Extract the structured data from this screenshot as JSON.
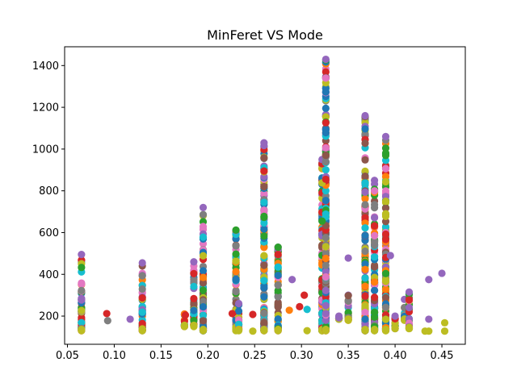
{
  "chart_data": {
    "type": "scatter",
    "title": "MinFeret VS Mode",
    "xlabel": "",
    "ylabel": "",
    "xlim": [
      0.047,
      0.475
    ],
    "ylim": [
      65,
      1490
    ],
    "xticks": [
      0.05,
      0.1,
      0.15,
      0.2,
      0.25,
      0.3,
      0.35,
      0.4,
      0.45
    ],
    "xtick_labels": [
      "0.05",
      "0.10",
      "0.15",
      "0.20",
      "0.25",
      "0.30",
      "0.35",
      "0.40",
      "0.45"
    ],
    "yticks": [
      200,
      400,
      600,
      800,
      1000,
      1200,
      1400
    ],
    "ytick_labels": [
      "200",
      "400",
      "600",
      "800",
      "1000",
      "1200",
      "1400"
    ],
    "grid": false,
    "legend": "none",
    "colors": [
      "#1f77b4",
      "#ff7f0e",
      "#2ca02c",
      "#d62728",
      "#9467bd",
      "#8c564b",
      "#e377c2",
      "#7f7f7f",
      "#bcbd22",
      "#17becf"
    ],
    "clusters": [
      {
        "x": 0.065,
        "ymin": 130,
        "ymax": 495
      },
      {
        "x": 0.13,
        "ymin": 130,
        "ymax": 455
      },
      {
        "x": 0.175,
        "ymin": 150,
        "ymax": 210
      },
      {
        "x": 0.185,
        "ymin": 150,
        "ymax": 460
      },
      {
        "x": 0.195,
        "ymin": 130,
        "ymax": 720
      },
      {
        "x": 0.23,
        "ymin": 130,
        "ymax": 610
      },
      {
        "x": 0.233,
        "ymin": 130,
        "ymax": 260
      },
      {
        "x": 0.26,
        "ymin": 130,
        "ymax": 1030
      },
      {
        "x": 0.275,
        "ymin": 130,
        "ymax": 530
      },
      {
        "x": 0.322,
        "ymin": 130,
        "ymax": 950
      },
      {
        "x": 0.326,
        "ymin": 130,
        "ymax": 1430
      },
      {
        "x": 0.34,
        "ymin": 185,
        "ymax": 200
      },
      {
        "x": 0.35,
        "ymin": 180,
        "ymax": 300
      },
      {
        "x": 0.368,
        "ymin": 130,
        "ymax": 1160
      },
      {
        "x": 0.378,
        "ymin": 130,
        "ymax": 850
      },
      {
        "x": 0.39,
        "ymin": 130,
        "ymax": 1060
      },
      {
        "x": 0.4,
        "ymin": 140,
        "ymax": 200
      },
      {
        "x": 0.41,
        "ymin": 180,
        "ymax": 280
      },
      {
        "x": 0.415,
        "ymin": 140,
        "ymax": 315
      }
    ],
    "points": [
      {
        "x": 0.092,
        "y": 212,
        "color": "#d62728"
      },
      {
        "x": 0.093,
        "y": 178,
        "color": "#7f7f7f"
      },
      {
        "x": 0.117,
        "y": 185,
        "color": "#9467bd"
      },
      {
        "x": 0.175,
        "y": 210,
        "color": "#ff7f0e"
      },
      {
        "x": 0.176,
        "y": 205,
        "color": "#d62728"
      },
      {
        "x": 0.195,
        "y": 578,
        "color": "#17becf"
      },
      {
        "x": 0.226,
        "y": 212,
        "color": "#d62728"
      },
      {
        "x": 0.23,
        "y": 612,
        "color": "#2ca02c"
      },
      {
        "x": 0.23,
        "y": 497,
        "color": "#2ca02c"
      },
      {
        "x": 0.248,
        "y": 208,
        "color": "#d62728"
      },
      {
        "x": 0.248,
        "y": 128,
        "color": "#bcbd22"
      },
      {
        "x": 0.26,
        "y": 895,
        "color": "#d62728"
      },
      {
        "x": 0.26,
        "y": 820,
        "color": "#8c564b"
      },
      {
        "x": 0.26,
        "y": 745,
        "color": "#17becf"
      },
      {
        "x": 0.275,
        "y": 530,
        "color": "#2ca02c"
      },
      {
        "x": 0.275,
        "y": 435,
        "color": "#17becf"
      },
      {
        "x": 0.275,
        "y": 395,
        "color": "#1f77b4"
      },
      {
        "x": 0.287,
        "y": 228,
        "color": "#ff7f0e"
      },
      {
        "x": 0.29,
        "y": 375,
        "color": "#9467bd"
      },
      {
        "x": 0.298,
        "y": 245,
        "color": "#d62728"
      },
      {
        "x": 0.303,
        "y": 300,
        "color": "#d62728"
      },
      {
        "x": 0.306,
        "y": 232,
        "color": "#17becf"
      },
      {
        "x": 0.306,
        "y": 130,
        "color": "#bcbd22"
      },
      {
        "x": 0.322,
        "y": 838,
        "color": "#bcbd22"
      },
      {
        "x": 0.322,
        "y": 655,
        "color": "#2ca02c"
      },
      {
        "x": 0.326,
        "y": 970,
        "color": "#8c564b"
      },
      {
        "x": 0.326,
        "y": 855,
        "color": "#d62728"
      },
      {
        "x": 0.34,
        "y": 192,
        "color": "#9467bd"
      },
      {
        "x": 0.35,
        "y": 478,
        "color": "#9467bd"
      },
      {
        "x": 0.35,
        "y": 298,
        "color": "#8c564b"
      },
      {
        "x": 0.378,
        "y": 585,
        "color": "#e377c2"
      },
      {
        "x": 0.378,
        "y": 290,
        "color": "#d62728"
      },
      {
        "x": 0.39,
        "y": 750,
        "color": "#bcbd22"
      },
      {
        "x": 0.39,
        "y": 690,
        "color": "#bcbd22"
      },
      {
        "x": 0.39,
        "y": 592,
        "color": "#d62728"
      },
      {
        "x": 0.395,
        "y": 490,
        "color": "#9467bd"
      },
      {
        "x": 0.415,
        "y": 140,
        "color": "#bcbd22"
      },
      {
        "x": 0.432,
        "y": 128,
        "color": "#bcbd22"
      },
      {
        "x": 0.436,
        "y": 375,
        "color": "#9467bd"
      },
      {
        "x": 0.436,
        "y": 185,
        "color": "#9467bd"
      },
      {
        "x": 0.436,
        "y": 128,
        "color": "#bcbd22"
      },
      {
        "x": 0.45,
        "y": 405,
        "color": "#9467bd"
      },
      {
        "x": 0.453,
        "y": 168,
        "color": "#bcbd22"
      },
      {
        "x": 0.453,
        "y": 128,
        "color": "#bcbd22"
      }
    ]
  }
}
